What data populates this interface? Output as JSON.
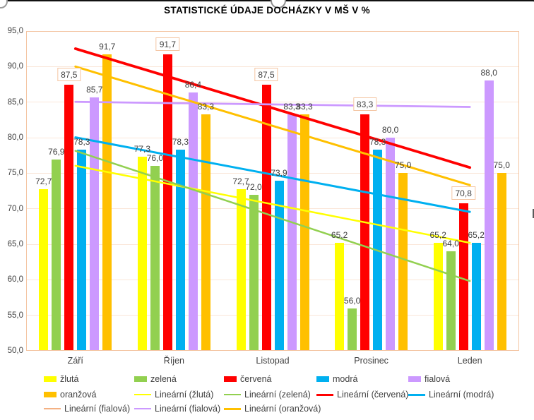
{
  "chart_data": {
    "type": "bar",
    "title": "STATISTICKÉ ÚDAJE DOCHÁZKY V MŠ V %",
    "categories": [
      "Září",
      "Říjen",
      "Listopad",
      "Prosinec",
      "Leden"
    ],
    "series": [
      {
        "name": "žlutá",
        "color": "#FFFF00",
        "values": [
          72.7,
          77.3,
          72.7,
          65.2,
          65.2
        ],
        "boxed_labels": false
      },
      {
        "name": "zelená",
        "color": "#92D050",
        "values": [
          76.9,
          76.0,
          72.0,
          56.0,
          64.0
        ],
        "boxed_labels": false
      },
      {
        "name": "červená",
        "color": "#FF0000",
        "values": [
          87.5,
          91.7,
          87.5,
          83.3,
          70.8
        ],
        "boxed_labels": true
      },
      {
        "name": "modrá",
        "color": "#00B0F0",
        "values": [
          78.3,
          78.3,
          73.9,
          78.3,
          65.2
        ],
        "boxed_labels": false
      },
      {
        "name": "fialová",
        "color": "#CC99FF",
        "values": [
          85.7,
          86.4,
          83.3,
          80.0,
          88.0
        ],
        "boxed_labels": false
      },
      {
        "name": "oranžová",
        "color": "#FFC000",
        "values": [
          91.7,
          83.3,
          83.3,
          75.0,
          75.0
        ],
        "boxed_labels": false
      }
    ],
    "trendlines": [
      {
        "label": "Lineární (žlutá)",
        "series": "žlutá",
        "color": "#FFFF00",
        "width": 2.5
      },
      {
        "label": "Lineární (zelená)",
        "series": "zelená",
        "color": "#92D050",
        "width": 2.5
      },
      {
        "label": "Lineární (červená)",
        "series": "červená",
        "color": "#FF0000",
        "width": 3.75
      },
      {
        "label": "Lineární (modrá)",
        "series": "modrá",
        "color": "#00B0F0",
        "width": 3
      },
      {
        "label": "Lineární (fialová)",
        "series": "fialová",
        "color": "#F4B183",
        "width": 1.25
      },
      {
        "label": "Lineární (fialová)",
        "series": "fialová",
        "color": "#CC99FF",
        "width": 2.75
      },
      {
        "label": "Lineární (oranžová)",
        "series": "oranžová",
        "color": "#FFC000",
        "width": 3
      }
    ],
    "ylim": [
      50,
      95
    ],
    "ytick_step": 5,
    "ytick_labels": [
      "95,0",
      "90,0",
      "85,0",
      "80,0",
      "75,0",
      "70,0",
      "65,0",
      "60,0",
      "55,0",
      "50,0"
    ],
    "grid": true,
    "legend_position": "bottom",
    "legend": [
      [
        {
          "label": "žlutá",
          "swatch": "rect",
          "color": "#FFFF00"
        },
        {
          "label": "zelená",
          "swatch": "rect",
          "color": "#92D050"
        },
        {
          "label": "červená",
          "swatch": "rect",
          "color": "#FF0000"
        },
        {
          "label": "modrá",
          "swatch": "rect",
          "color": "#00B0F0"
        },
        {
          "label": "fialová",
          "swatch": "rect",
          "color": "#CC99FF"
        }
      ],
      [
        {
          "label": "oranžová",
          "swatch": "rect",
          "color": "#FFC000"
        },
        {
          "label": "Lineární (žlutá)",
          "swatch": "line",
          "color": "#FFFF00",
          "width": 2.5
        },
        {
          "label": "Lineární (zelená)",
          "swatch": "line",
          "color": "#92D050",
          "width": 2.5
        },
        {
          "label": "Lineární (červená)",
          "swatch": "line",
          "color": "#FF0000",
          "width": 3
        },
        {
          "label": "Lineární (modrá)",
          "swatch": "line",
          "color": "#00B0F0",
          "width": 3
        }
      ],
      [
        {
          "label": "Lineární (fialová)",
          "swatch": "line",
          "color": "#F4B183",
          "width": 1.25
        },
        {
          "label": "Lineární (fialová)",
          "swatch": "line",
          "color": "#CC99FF",
          "width": 2.75
        },
        {
          "label": "Lineární (oranžová)",
          "swatch": "line",
          "color": "#FFC000",
          "width": 3
        }
      ]
    ]
  }
}
